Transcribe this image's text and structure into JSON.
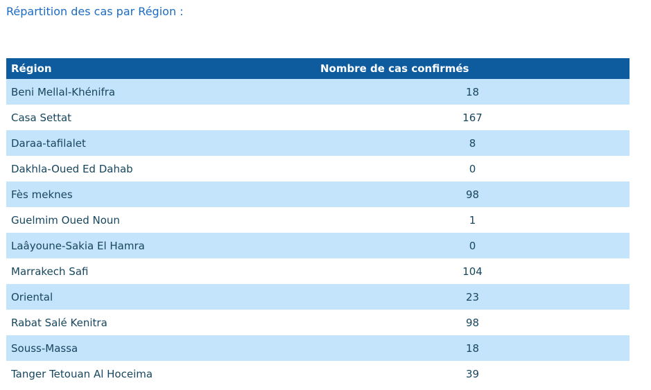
{
  "page": {
    "title": "Répartition des cas par Région :"
  },
  "colors": {
    "title_text": "#1a6bc2",
    "header_bg": "#0e5c9e",
    "header_text": "#ffffff",
    "row_alt_bg": "#c4e4fc",
    "row_bg": "#ffffff",
    "body_text": "#17465e"
  },
  "table": {
    "headers": [
      "Région",
      "Nombre de cas confirmés"
    ],
    "rows": [
      {
        "region": "Beni Mellal-Khénifra",
        "cases": "18"
      },
      {
        "region": "Casa Settat",
        "cases": "167"
      },
      {
        "region": "Daraa-tafilalet",
        "cases": "8"
      },
      {
        "region": "Dakhla-Oued Ed Dahab",
        "cases": "0"
      },
      {
        "region": "Fès meknes",
        "cases": "98"
      },
      {
        "region": "Guelmim Oued Noun",
        "cases": "1"
      },
      {
        "region": "Laâyoune-Sakia El Hamra",
        "cases": "0"
      },
      {
        "region": "Marrakech Safi",
        "cases": "104"
      },
      {
        "region": "Oriental",
        "cases": "23"
      },
      {
        "region": "Rabat Salé Kenitra",
        "cases": "98"
      },
      {
        "region": "Souss-Massa",
        "cases": "18"
      },
      {
        "region": "Tanger Tetouan Al Hoceima",
        "cases": "39"
      }
    ]
  },
  "chart_data": {
    "type": "table",
    "title": "Répartition des cas par Région :",
    "columns": [
      "Région",
      "Nombre de cas confirmés"
    ],
    "categories": [
      "Beni Mellal-Khénifra",
      "Casa Settat",
      "Daraa-tafilalet",
      "Dakhla-Oued Ed Dahab",
      "Fès meknes",
      "Guelmim Oued Noun",
      "Laâyoune-Sakia El Hamra",
      "Marrakech Safi",
      "Oriental",
      "Rabat Salé Kenitra",
      "Souss-Massa",
      "Tanger Tetouan Al Hoceima"
    ],
    "values": [
      18,
      167,
      8,
      0,
      98,
      1,
      0,
      104,
      23,
      98,
      18,
      39
    ]
  }
}
